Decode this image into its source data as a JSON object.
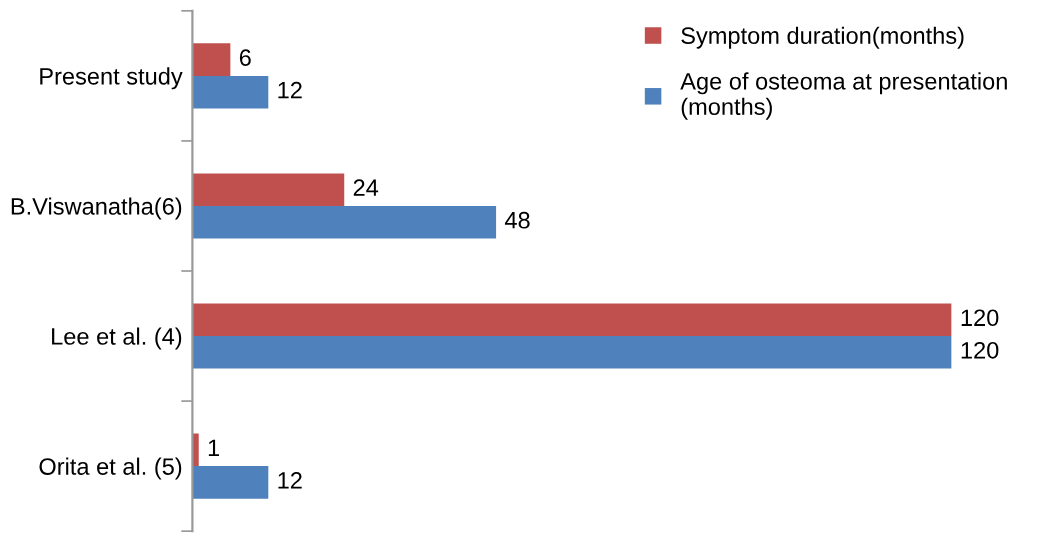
{
  "chart_data": {
    "type": "bar",
    "orientation": "horizontal",
    "categories": [
      "Present study",
      "B.Viswanatha(6)",
      "Lee et al. (4)",
      "Orita et al. (5)"
    ],
    "series": [
      {
        "name": "Symptom duration(months)",
        "color": "#c0504d",
        "values": [
          6,
          24,
          120,
          1
        ]
      },
      {
        "name": "Age of osteoma at presentation (months)",
        "color": "#4f81bd",
        "values": [
          12,
          48,
          120,
          12
        ]
      }
    ],
    "data_labels": true,
    "legend": "top right",
    "grid": false
  }
}
